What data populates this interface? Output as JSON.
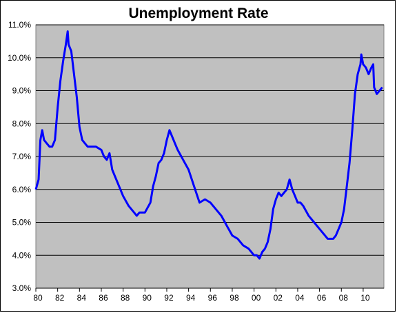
{
  "chart_data": {
    "type": "line",
    "title": "Unemployment Rate",
    "xlabel": "",
    "ylabel": "",
    "ylim": [
      3.0,
      11.0
    ],
    "xlim": [
      1980,
      2011.9
    ],
    "grid": true,
    "legend": "none",
    "y_ticks": [
      "3.0%",
      "4.0%",
      "5.0%",
      "6.0%",
      "7.0%",
      "8.0%",
      "9.0%",
      "10.0%",
      "11.0%"
    ],
    "x_ticks": [
      "80",
      "82",
      "84",
      "86",
      "88",
      "90",
      "92",
      "94",
      "96",
      "98",
      "00",
      "02",
      "04",
      "06",
      "08",
      "10"
    ],
    "colors": {
      "line": "#0000ff",
      "plot_bg": "#c0c0c0",
      "grid": "#000000"
    },
    "series": [
      {
        "name": "",
        "x": [
          1980.0,
          1980.25,
          1980.42,
          1980.58,
          1980.75,
          1981.0,
          1981.25,
          1981.5,
          1981.75,
          1982.0,
          1982.25,
          1982.5,
          1982.75,
          1982.92,
          1983.0,
          1983.25,
          1983.5,
          1983.75,
          1984.0,
          1984.25,
          1984.5,
          1984.75,
          1985.0,
          1985.5,
          1986.0,
          1986.25,
          1986.5,
          1986.75,
          1987.0,
          1987.5,
          1988.0,
          1988.5,
          1989.0,
          1989.25,
          1989.5,
          1990.0,
          1990.5,
          1990.75,
          1991.0,
          1991.25,
          1991.5,
          1991.75,
          1992.0,
          1992.25,
          1992.5,
          1992.75,
          1993.0,
          1993.5,
          1994.0,
          1994.5,
          1995.0,
          1995.5,
          1996.0,
          1996.5,
          1997.0,
          1997.5,
          1998.0,
          1998.5,
          1999.0,
          1999.5,
          2000.0,
          2000.25,
          2000.5,
          2000.75,
          2001.0,
          2001.25,
          2001.5,
          2001.75,
          2002.0,
          2002.25,
          2002.5,
          2002.75,
          2003.0,
          2003.25,
          2003.5,
          2003.75,
          2004.0,
          2004.25,
          2004.5,
          2005.0,
          2005.5,
          2006.0,
          2006.5,
          2006.75,
          2007.0,
          2007.25,
          2007.5,
          2007.75,
          2008.0,
          2008.25,
          2008.5,
          2008.75,
          2009.0,
          2009.25,
          2009.5,
          2009.75,
          2009.83,
          2010.0,
          2010.25,
          2010.5,
          2010.75,
          2010.92,
          2011.0,
          2011.25,
          2011.5,
          2011.75
        ],
        "values": [
          6.0,
          6.3,
          7.5,
          7.8,
          7.5,
          7.4,
          7.3,
          7.3,
          7.5,
          8.5,
          9.3,
          9.9,
          10.4,
          10.8,
          10.4,
          10.2,
          9.5,
          8.8,
          7.9,
          7.5,
          7.4,
          7.3,
          7.3,
          7.3,
          7.2,
          7.0,
          6.9,
          7.1,
          6.6,
          6.2,
          5.8,
          5.5,
          5.3,
          5.2,
          5.3,
          5.3,
          5.6,
          6.1,
          6.4,
          6.8,
          6.9,
          7.1,
          7.5,
          7.8,
          7.6,
          7.4,
          7.2,
          6.9,
          6.6,
          6.1,
          5.6,
          5.7,
          5.6,
          5.4,
          5.2,
          4.9,
          4.6,
          4.5,
          4.3,
          4.2,
          4.0,
          4.0,
          3.9,
          4.1,
          4.2,
          4.4,
          4.8,
          5.4,
          5.7,
          5.9,
          5.8,
          5.9,
          6.0,
          6.3,
          6.0,
          5.8,
          5.6,
          5.6,
          5.5,
          5.2,
          5.0,
          4.8,
          4.6,
          4.5,
          4.5,
          4.5,
          4.6,
          4.8,
          5.0,
          5.4,
          6.1,
          6.8,
          7.8,
          8.9,
          9.5,
          9.8,
          10.1,
          9.8,
          9.7,
          9.5,
          9.7,
          9.8,
          9.1,
          8.9,
          9.0,
          9.1
        ]
      }
    ]
  }
}
